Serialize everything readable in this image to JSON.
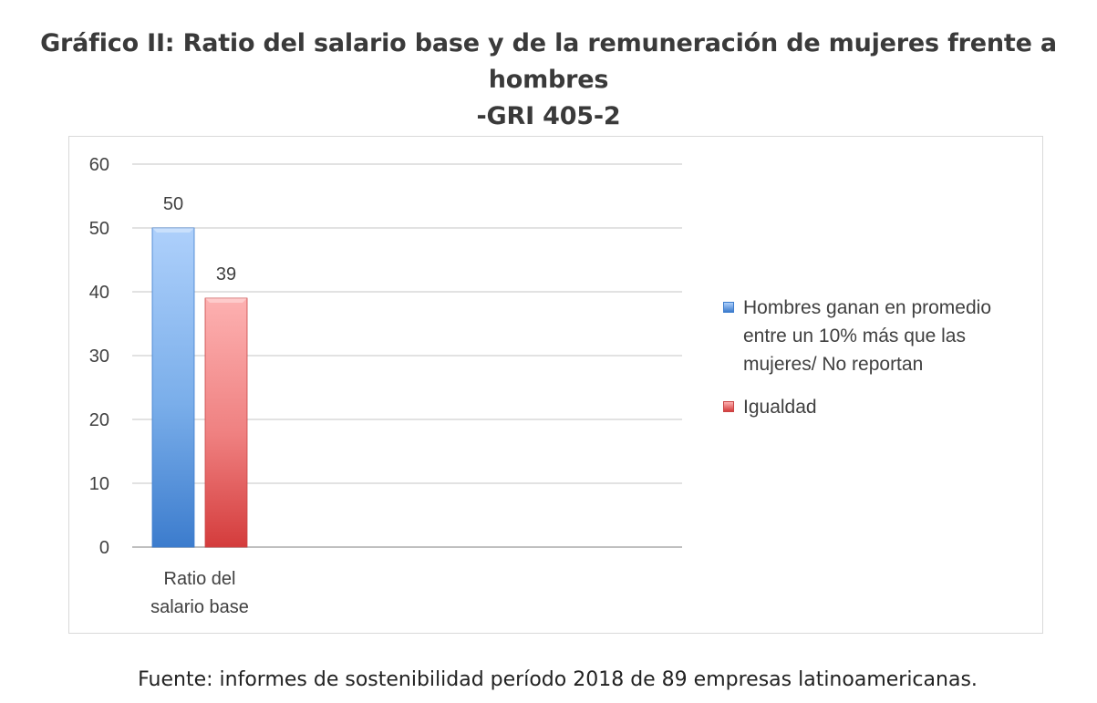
{
  "title_line1": "Gráfico II: Ratio del salario base y de la remuneración de mujeres frente a hombres",
  "title_line2": "-GRI 405-2",
  "source": "Fuente: informes de sostenibilidad período 2018 de 89 empresas latinoamericanas.",
  "chart_data": {
    "type": "bar",
    "categories": [
      "Ratio del salario base"
    ],
    "category_label_lines": [
      [
        "Ratio del",
        "salario base"
      ]
    ],
    "series": [
      {
        "name": "Hombres ganan en promedio entre un 10% más que las mujeres/ No reportan",
        "legend_lines": [
          "Hombres ganan en promedio",
          "entre un 10% más que las",
          "mujeres/ No reportan"
        ],
        "values": [
          50
        ],
        "labels": [
          "50"
        ],
        "color": "#5b9bd5"
      },
      {
        "name": "Igualdad",
        "legend_lines": [
          "Igualdad"
        ],
        "values": [
          39
        ],
        "labels": [
          "39"
        ],
        "color": "#e05a5a"
      }
    ],
    "ylim": [
      0,
      60
    ],
    "yticks": [
      "0",
      "10",
      "20",
      "30",
      "40",
      "50",
      "60"
    ],
    "grid": true,
    "legend_position": "right"
  }
}
